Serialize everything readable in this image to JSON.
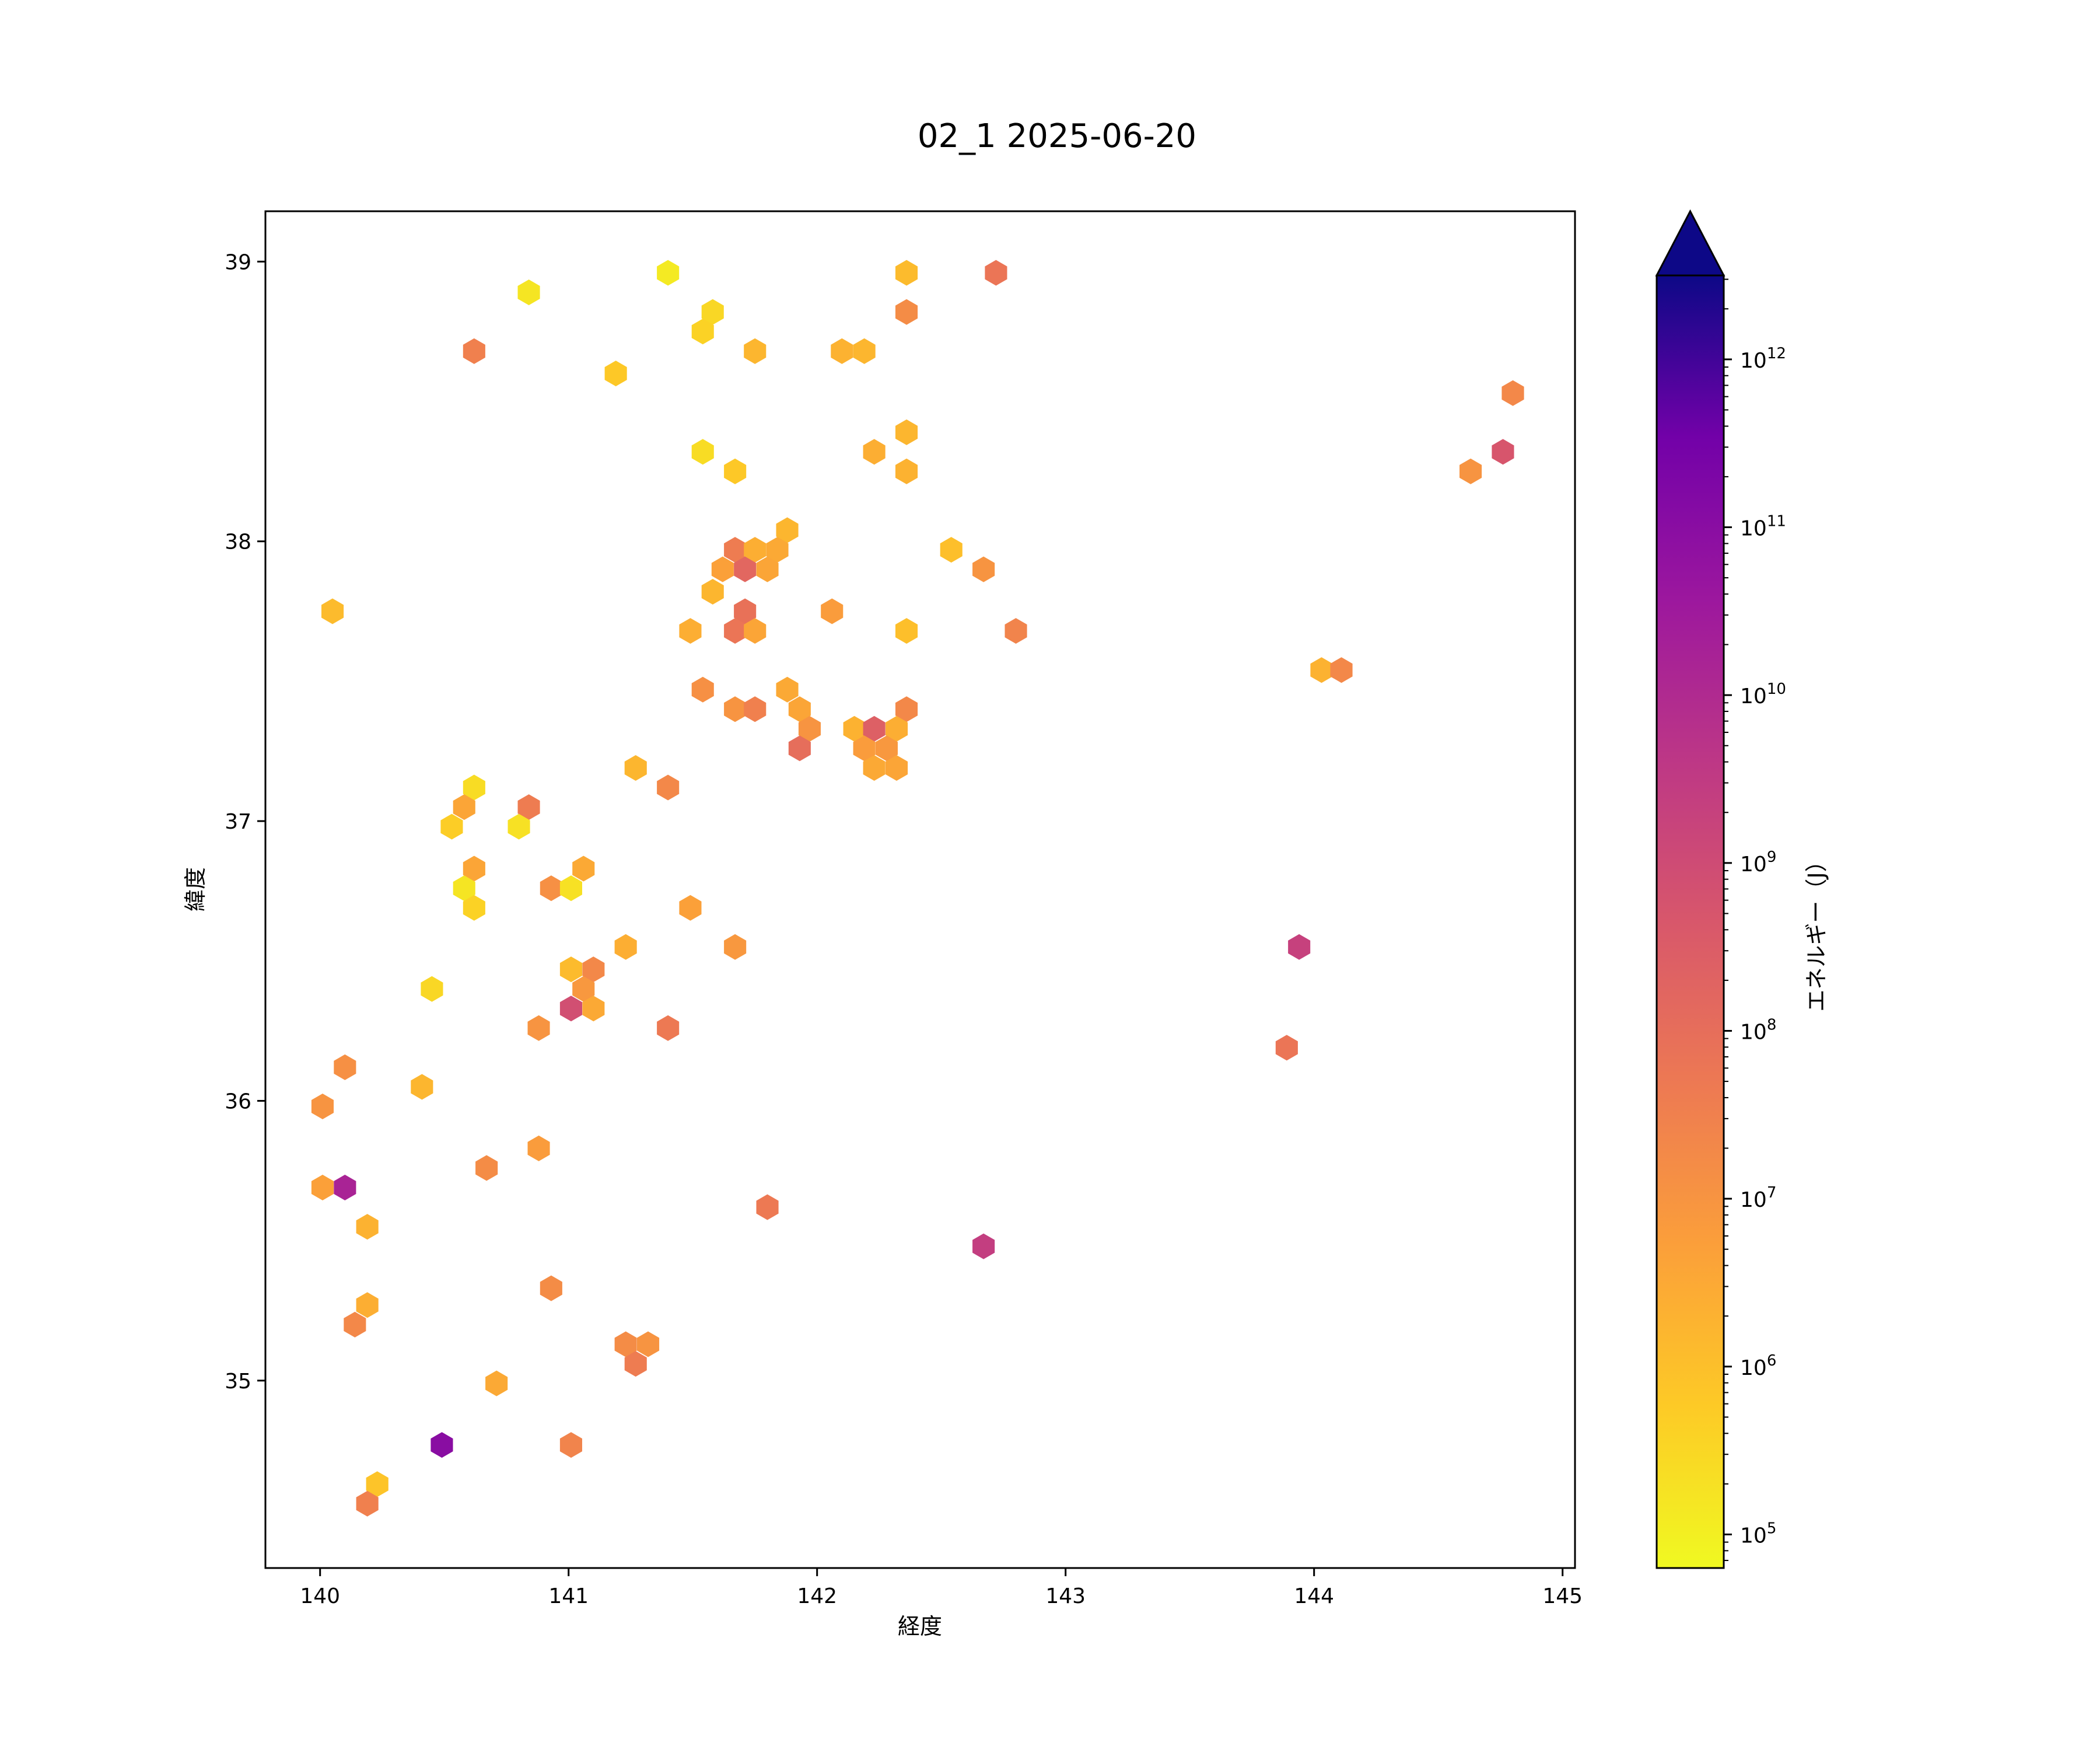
{
  "chart_data": {
    "type": "hexbin",
    "title": "02_1 2025-06-20",
    "xlabel": "経度",
    "ylabel": "緯度",
    "xlim": [
      139.78,
      145.05
    ],
    "ylim": [
      34.33,
      39.18
    ],
    "x_ticks": [
      140,
      141,
      142,
      143,
      144,
      145
    ],
    "y_ticks": [
      35,
      36,
      37,
      38,
      39
    ],
    "colormap": "plasma_r",
    "colorbar": {
      "label": "エネルギー（J）",
      "scale": "log",
      "min_exponent": 4.8,
      "max_exponent": 12.5,
      "tick_base": "10",
      "tick_exponents": [
        "5",
        "6",
        "7",
        "8",
        "9",
        "10",
        "11",
        "12"
      ],
      "extend": "max"
    },
    "grid": false,
    "cells": [
      {
        "lon": 141.4,
        "lat": 38.96,
        "e": 5.1
      },
      {
        "lon": 140.84,
        "lat": 38.89,
        "e": 5.2
      },
      {
        "lon": 141.58,
        "lat": 38.82,
        "e": 5.5
      },
      {
        "lon": 141.54,
        "lat": 38.75,
        "e": 5.6
      },
      {
        "lon": 142.36,
        "lat": 38.96,
        "e": 6.1
      },
      {
        "lon": 142.72,
        "lat": 38.96,
        "e": 7.8
      },
      {
        "lon": 142.36,
        "lat": 38.82,
        "e": 7.2
      },
      {
        "lon": 140.62,
        "lat": 38.68,
        "e": 7.5
      },
      {
        "lon": 141.75,
        "lat": 38.68,
        "e": 6.2
      },
      {
        "lon": 142.1,
        "lat": 38.68,
        "e": 6.3
      },
      {
        "lon": 142.19,
        "lat": 38.68,
        "e": 6.2
      },
      {
        "lon": 141.19,
        "lat": 38.6,
        "e": 5.8
      },
      {
        "lon": 144.8,
        "lat": 38.53,
        "e": 7.3
      },
      {
        "lon": 142.36,
        "lat": 38.39,
        "e": 6.2
      },
      {
        "lon": 141.54,
        "lat": 38.32,
        "e": 5.4
      },
      {
        "lon": 142.23,
        "lat": 38.32,
        "e": 6.4
      },
      {
        "lon": 144.76,
        "lat": 38.32,
        "e": 8.7
      },
      {
        "lon": 141.67,
        "lat": 38.25,
        "e": 5.8
      },
      {
        "lon": 142.36,
        "lat": 38.25,
        "e": 6.3
      },
      {
        "lon": 144.63,
        "lat": 38.25,
        "e": 7.0
      },
      {
        "lon": 141.88,
        "lat": 38.04,
        "e": 6.2
      },
      {
        "lon": 141.67,
        "lat": 37.97,
        "e": 7.6
      },
      {
        "lon": 141.75,
        "lat": 37.97,
        "e": 6.4
      },
      {
        "lon": 141.84,
        "lat": 37.97,
        "e": 6.5
      },
      {
        "lon": 142.54,
        "lat": 37.97,
        "e": 6.0
      },
      {
        "lon": 141.62,
        "lat": 37.9,
        "e": 6.7
      },
      {
        "lon": 141.71,
        "lat": 37.9,
        "e": 8.2
      },
      {
        "lon": 141.8,
        "lat": 37.9,
        "e": 6.6
      },
      {
        "lon": 142.67,
        "lat": 37.9,
        "e": 7.0
      },
      {
        "lon": 141.58,
        "lat": 37.82,
        "e": 6.2
      },
      {
        "lon": 140.05,
        "lat": 37.75,
        "e": 6.1
      },
      {
        "lon": 141.71,
        "lat": 37.75,
        "e": 7.9
      },
      {
        "lon": 142.06,
        "lat": 37.75,
        "e": 6.8
      },
      {
        "lon": 141.49,
        "lat": 37.68,
        "e": 6.4
      },
      {
        "lon": 141.67,
        "lat": 37.68,
        "e": 7.8
      },
      {
        "lon": 141.75,
        "lat": 37.68,
        "e": 6.6
      },
      {
        "lon": 142.36,
        "lat": 37.68,
        "e": 6.0
      },
      {
        "lon": 142.8,
        "lat": 37.68,
        "e": 7.4
      },
      {
        "lon": 144.03,
        "lat": 37.54,
        "e": 6.3
      },
      {
        "lon": 144.11,
        "lat": 37.54,
        "e": 7.3
      },
      {
        "lon": 141.54,
        "lat": 37.47,
        "e": 7.1
      },
      {
        "lon": 141.88,
        "lat": 37.47,
        "e": 6.5
      },
      {
        "lon": 141.67,
        "lat": 37.4,
        "e": 7.0
      },
      {
        "lon": 141.75,
        "lat": 37.4,
        "e": 7.5
      },
      {
        "lon": 141.93,
        "lat": 37.4,
        "e": 6.6
      },
      {
        "lon": 142.36,
        "lat": 37.4,
        "e": 7.3
      },
      {
        "lon": 141.97,
        "lat": 37.33,
        "e": 7.0
      },
      {
        "lon": 142.15,
        "lat": 37.33,
        "e": 6.3
      },
      {
        "lon": 142.23,
        "lat": 37.33,
        "e": 8.4
      },
      {
        "lon": 142.32,
        "lat": 37.33,
        "e": 6.4
      },
      {
        "lon": 141.93,
        "lat": 37.26,
        "e": 8.0
      },
      {
        "lon": 142.19,
        "lat": 37.26,
        "e": 6.8
      },
      {
        "lon": 142.28,
        "lat": 37.26,
        "e": 6.9
      },
      {
        "lon": 142.23,
        "lat": 37.19,
        "e": 6.5
      },
      {
        "lon": 142.32,
        "lat": 37.19,
        "e": 6.6
      },
      {
        "lon": 141.27,
        "lat": 37.19,
        "e": 6.2
      },
      {
        "lon": 141.4,
        "lat": 37.12,
        "e": 7.3
      },
      {
        "lon": 140.62,
        "lat": 37.12,
        "e": 5.4
      },
      {
        "lon": 140.58,
        "lat": 37.05,
        "e": 6.6
      },
      {
        "lon": 140.84,
        "lat": 37.05,
        "e": 7.6
      },
      {
        "lon": 140.53,
        "lat": 36.98,
        "e": 5.7
      },
      {
        "lon": 140.8,
        "lat": 36.98,
        "e": 5.3
      },
      {
        "lon": 140.62,
        "lat": 36.83,
        "e": 6.6
      },
      {
        "lon": 141.06,
        "lat": 36.83,
        "e": 6.5
      },
      {
        "lon": 140.58,
        "lat": 36.76,
        "e": 5.2
      },
      {
        "lon": 140.93,
        "lat": 36.76,
        "e": 7.1
      },
      {
        "lon": 141.01,
        "lat": 36.76,
        "e": 5.3
      },
      {
        "lon": 140.62,
        "lat": 36.69,
        "e": 5.6
      },
      {
        "lon": 141.49,
        "lat": 36.69,
        "e": 6.7
      },
      {
        "lon": 141.23,
        "lat": 36.55,
        "e": 6.4
      },
      {
        "lon": 141.67,
        "lat": 36.55,
        "e": 6.9
      },
      {
        "lon": 143.94,
        "lat": 36.55,
        "e": 9.3
      },
      {
        "lon": 141.01,
        "lat": 36.47,
        "e": 6.1
      },
      {
        "lon": 141.1,
        "lat": 36.47,
        "e": 7.3
      },
      {
        "lon": 140.45,
        "lat": 36.4,
        "e": 5.5
      },
      {
        "lon": 141.06,
        "lat": 36.4,
        "e": 6.9
      },
      {
        "lon": 141.01,
        "lat": 36.33,
        "e": 8.9
      },
      {
        "lon": 141.1,
        "lat": 36.33,
        "e": 6.5
      },
      {
        "lon": 140.88,
        "lat": 36.26,
        "e": 7.0
      },
      {
        "lon": 141.4,
        "lat": 36.26,
        "e": 7.7
      },
      {
        "lon": 143.89,
        "lat": 36.19,
        "e": 7.8
      },
      {
        "lon": 140.1,
        "lat": 36.12,
        "e": 7.1
      },
      {
        "lon": 140.41,
        "lat": 36.05,
        "e": 6.2
      },
      {
        "lon": 140.01,
        "lat": 35.98,
        "e": 7.0
      },
      {
        "lon": 140.88,
        "lat": 35.83,
        "e": 6.8
      },
      {
        "lon": 140.67,
        "lat": 35.76,
        "e": 7.2
      },
      {
        "lon": 140.01,
        "lat": 35.69,
        "e": 6.7
      },
      {
        "lon": 140.1,
        "lat": 35.69,
        "e": 10.2
      },
      {
        "lon": 141.8,
        "lat": 35.62,
        "e": 7.7
      },
      {
        "lon": 140.19,
        "lat": 35.55,
        "e": 6.3
      },
      {
        "lon": 142.67,
        "lat": 35.48,
        "e": 9.4
      },
      {
        "lon": 140.93,
        "lat": 35.33,
        "e": 7.2
      },
      {
        "lon": 140.19,
        "lat": 35.27,
        "e": 6.4
      },
      {
        "lon": 140.14,
        "lat": 35.2,
        "e": 7.3
      },
      {
        "lon": 141.23,
        "lat": 35.13,
        "e": 7.2
      },
      {
        "lon": 141.32,
        "lat": 35.13,
        "e": 7.0
      },
      {
        "lon": 141.27,
        "lat": 35.06,
        "e": 7.6
      },
      {
        "lon": 140.71,
        "lat": 34.99,
        "e": 6.5
      },
      {
        "lon": 140.49,
        "lat": 34.77,
        "e": 11.0
      },
      {
        "lon": 141.01,
        "lat": 34.77,
        "e": 7.4
      },
      {
        "lon": 140.23,
        "lat": 34.63,
        "e": 5.9
      },
      {
        "lon": 140.19,
        "lat": 34.56,
        "e": 7.5
      }
    ]
  }
}
